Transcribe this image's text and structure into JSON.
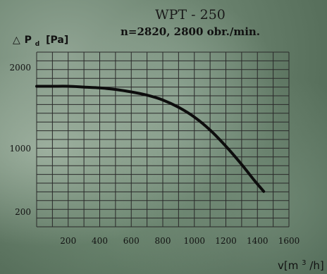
{
  "chart_data": {
    "type": "line",
    "title": "WPT - 250",
    "subtitle": "n=2820, 2800 obr./min.",
    "ylabel_symbol": "△",
    "ylabel_main": "P",
    "ylabel_sub": "d",
    "ylabel_unit": "[Pa]",
    "xlabel_main": "v[m",
    "xlabel_sup": "3",
    "xlabel_tail": "/h]",
    "xlim": [
      0,
      1600
    ],
    "ylim": [
      0,
      2200
    ],
    "x_ticks": [
      200,
      400,
      600,
      800,
      1000,
      1200,
      1400,
      1600
    ],
    "y_ticks": [
      200,
      1000,
      2000
    ],
    "grid": true,
    "series": [
      {
        "x": [
          0,
          100,
          200,
          300,
          400,
          500,
          600,
          700,
          800,
          900,
          1000,
          1100,
          1200,
          1300,
          1380,
          1440
        ],
        "y": [
          1770,
          1770,
          1770,
          1760,
          1750,
          1730,
          1700,
          1660,
          1600,
          1510,
          1390,
          1230,
          1030,
          800,
          600,
          460
        ]
      }
    ]
  }
}
